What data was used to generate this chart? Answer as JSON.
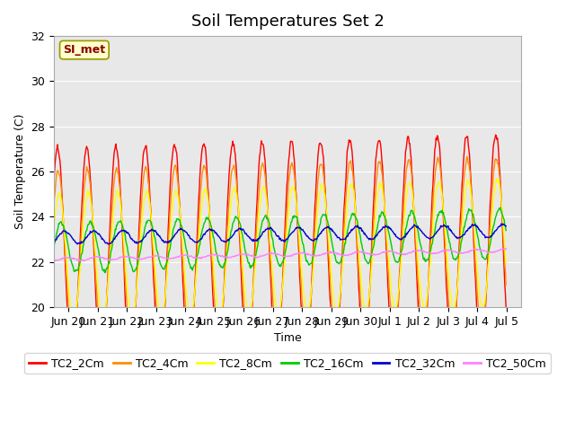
{
  "title": "Soil Temperatures Set 2",
  "xlabel": "Time",
  "ylabel": "Soil Temperature (C)",
  "ylim": [
    20,
    32
  ],
  "annotation": "SI_met",
  "series": [
    {
      "label": "TC2_2Cm",
      "color": "#FF0000",
      "lw": 1.0
    },
    {
      "label": "TC2_4Cm",
      "color": "#FF8C00",
      "lw": 1.0
    },
    {
      "label": "TC2_8Cm",
      "color": "#FFFF00",
      "lw": 1.0
    },
    {
      "label": "TC2_16Cm",
      "color": "#00CC00",
      "lw": 1.0
    },
    {
      "label": "TC2_32Cm",
      "color": "#0000CC",
      "lw": 1.0
    },
    {
      "label": "TC2_50Cm",
      "color": "#FF80FF",
      "lw": 1.0
    }
  ],
  "tick_positions": [
    1,
    2,
    3,
    4,
    5,
    6,
    7,
    8,
    9,
    10,
    11,
    12,
    13,
    14,
    15,
    16
  ],
  "tick_labels": [
    "Jun 20",
    "Jun 21",
    "Jun 22",
    "Jun 23",
    "Jun 24",
    "Jun 25",
    "Jun 26",
    "Jun 27",
    "Jun 28",
    "Jun 29",
    "Jun 30",
    "Jul 1",
    "Jul 2",
    "Jul 3",
    "Jul 4",
    "Jul 5"
  ],
  "yticks": [
    20,
    22,
    24,
    26,
    28,
    30,
    32
  ],
  "xlim": [
    0.5,
    16.5
  ],
  "bg_color": "#E8E8E8",
  "fig_color": "#FFFFFF",
  "title_fontsize": 13,
  "axis_fontsize": 9,
  "legend_fontsize": 9
}
